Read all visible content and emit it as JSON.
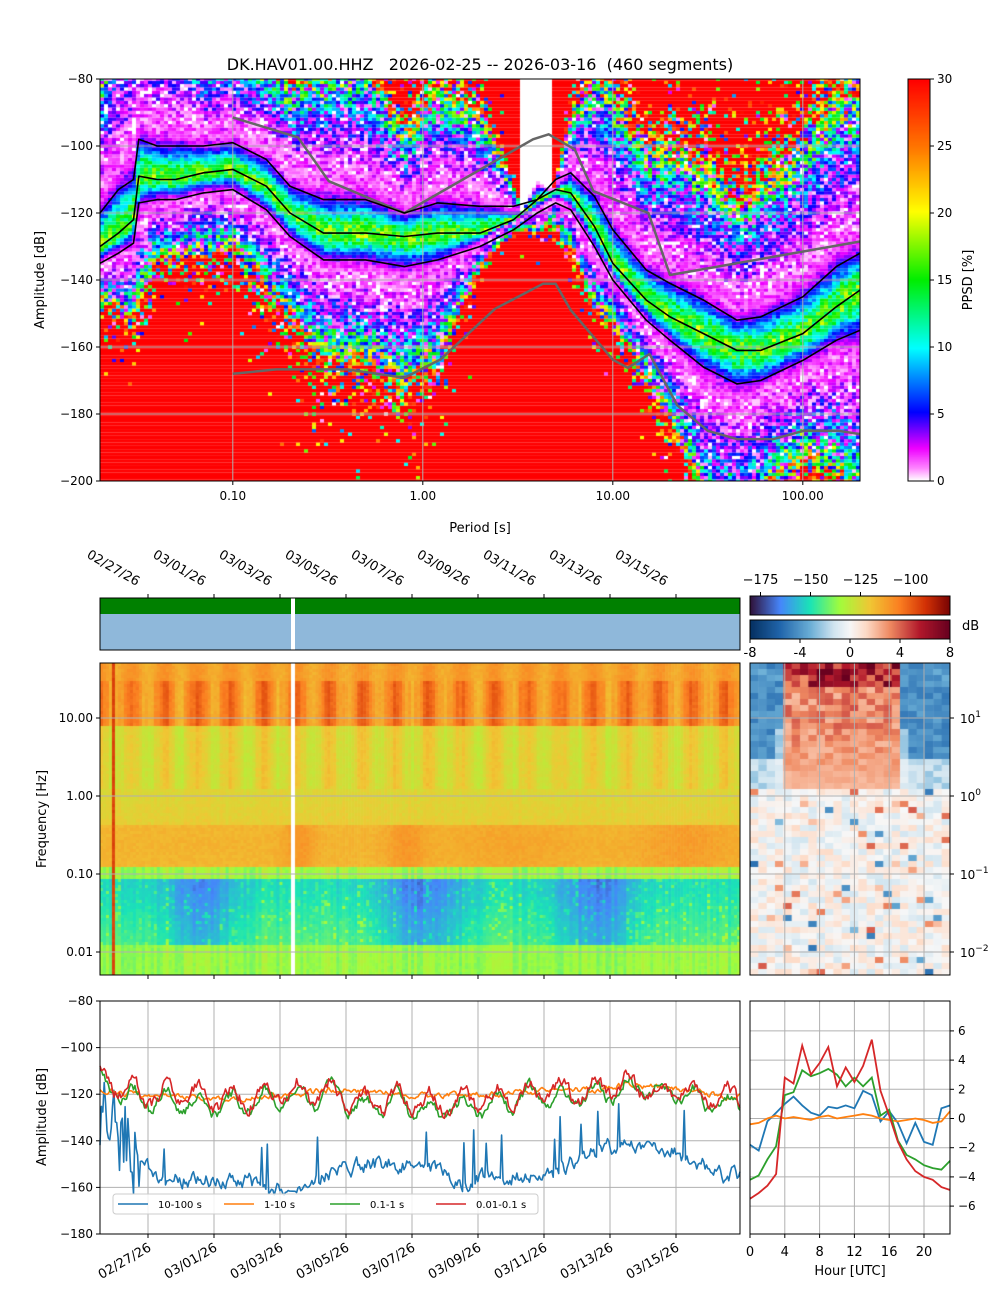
{
  "chart_data": [
    {
      "type": "heatmap",
      "name": "ppsd",
      "title": "DK.HAV01.00.HHZ   2026-02-25 -- 2026-03-16  (460 segments)",
      "xlabel": "Period [s]",
      "ylabel": "Amplitude [dB]",
      "xscale": "log",
      "xlim": [
        0.02,
        200
      ],
      "ylim": [
        -200,
        -80
      ],
      "xticks": [
        0.1,
        1,
        10,
        100
      ],
      "xtick_labels": [
        "0.10",
        "1.00",
        "10.00",
        "100.00"
      ],
      "yticks": [
        -80,
        -100,
        -120,
        -140,
        -160,
        -180,
        -200
      ],
      "grid": true,
      "colorbar": {
        "label": "PPSD [%]",
        "range": [
          0,
          30
        ],
        "ticks": [
          0,
          5,
          10,
          15,
          20,
          25,
          30
        ]
      },
      "percentiles": {
        "period": [
          0.02,
          0.025,
          0.03,
          0.032,
          0.04,
          0.05,
          0.07,
          0.1,
          0.15,
          0.2,
          0.3,
          0.5,
          0.8,
          1.2,
          2,
          3,
          4,
          5,
          6,
          8,
          10,
          15,
          20,
          30,
          45,
          60,
          100,
          150,
          200
        ],
        "upper": [
          -120,
          -113,
          -110,
          -98,
          -100,
          -100,
          -100,
          -99,
          -104,
          -112,
          -116,
          -116,
          -120,
          -117,
          -118,
          -118,
          -116,
          -110,
          -108,
          -115,
          -125,
          -137,
          -141,
          -146,
          -152,
          -151,
          -145,
          -136,
          -132
        ],
        "median": [
          -130,
          -126,
          -122,
          -109,
          -110,
          -110,
          -108,
          -107,
          -112,
          -120,
          -126,
          -126,
          -127,
          -126,
          -126,
          -122,
          -116,
          -113,
          -114,
          -124,
          -135,
          -146,
          -151,
          -156,
          -161,
          -161,
          -156,
          -148,
          -143
        ],
        "lower": [
          -135,
          -132,
          -129,
          -117,
          -116,
          -116,
          -114,
          -113,
          -119,
          -127,
          -134,
          -134,
          -136,
          -134,
          -130,
          -125,
          -120,
          -117,
          -119,
          -130,
          -140,
          -152,
          -158,
          -166,
          -171,
          -170,
          -164,
          -158,
          -155
        ]
      },
      "nhnm": [
        [
          0.1,
          -91.5
        ],
        [
          0.22,
          -97.4
        ],
        [
          0.32,
          -110.5
        ],
        [
          0.8,
          -120
        ],
        [
          3.8,
          -98
        ],
        [
          4.6,
          -96.5
        ],
        [
          6.3,
          -101
        ],
        [
          7.9,
          -113.5
        ],
        [
          15.4,
          -120
        ],
        [
          20,
          -138.5
        ],
        [
          200,
          -128.5
        ]
      ],
      "nlnm": [
        [
          0.1,
          -168
        ],
        [
          0.17,
          -166.7
        ],
        [
          0.4,
          -166.7
        ],
        [
          0.8,
          -169.2
        ],
        [
          1.24,
          -163.7
        ],
        [
          2.4,
          -148.6
        ],
        [
          4.3,
          -141.1
        ],
        [
          5,
          -141.1
        ],
        [
          6,
          -149
        ],
        [
          10,
          -163.8
        ],
        [
          12,
          -166.2
        ],
        [
          15.6,
          -162.1
        ],
        [
          21.9,
          -177.5
        ],
        [
          31.6,
          -185
        ],
        [
          45,
          -187.5
        ],
        [
          70,
          -187.5
        ],
        [
          101,
          -185
        ],
        [
          154,
          -185
        ],
        [
          200,
          -186
        ]
      ]
    },
    {
      "type": "heatmap",
      "name": "spectrogram",
      "ylabel": "Frequency [Hz]",
      "yscale": "log",
      "yticks": [
        "10.00",
        "1.00",
        "0.10",
        "0.01"
      ],
      "date_ticks": [
        "02/27/26",
        "03/01/26",
        "03/03/26",
        "03/05/26",
        "03/07/26",
        "03/09/26",
        "03/11/26",
        "03/13/26",
        "03/15/26"
      ],
      "colorbar": {
        "range": [
          -180,
          -80
        ],
        "ticks": [
          "−175",
          "−150",
          "−125",
          "−100"
        ]
      },
      "data_gap_date": "03/04/26"
    },
    {
      "type": "heatmap",
      "name": "diurnal-difference",
      "colorbar": {
        "label": "dB",
        "range": [
          -8,
          8
        ],
        "ticks": [
          "-8",
          "-4",
          "0",
          "4",
          "8"
        ]
      },
      "yticks": [
        "10",
        "0",
        "−1",
        "−2"
      ]
    },
    {
      "type": "line",
      "name": "band-amplitude-timeseries",
      "ylabel": "Amplitude [dB]",
      "ylim": [
        -180,
        -80
      ],
      "yticks": [
        "−80",
        "−100",
        "−120",
        "−140",
        "−160",
        "−180"
      ],
      "legend_position": "lower-left",
      "series": [
        {
          "name": "10-100 s",
          "color": "#1f77b4",
          "daily_mean": [
            -125,
            -148,
            -156,
            -158,
            -155,
            -160,
            -160,
            -155,
            -150,
            -150,
            -152,
            -158,
            -155,
            -156,
            -152,
            -145,
            -140,
            -143,
            -148,
            -155,
            -152,
            -150
          ]
        },
        {
          "name": "1-10 s",
          "color": "#ff7f0e",
          "daily_mean": [
            -118,
            -120,
            -120,
            -121,
            -122,
            -121,
            -120,
            -118,
            -119,
            -120,
            -121,
            -120,
            -120,
            -119,
            -118,
            -118,
            -116,
            -117,
            -119,
            -121,
            -119,
            -117
          ]
        },
        {
          "name": "0.1-1 s",
          "color": "#2ca02c",
          "daily_mean": [
            -115,
            -122,
            -123,
            -124,
            -124,
            -122,
            -122,
            -120,
            -126,
            -124,
            -127,
            -126,
            -124,
            -121,
            -122,
            -121,
            -117,
            -118,
            -121,
            -124,
            -120,
            -119
          ]
        },
        {
          "name": "0.01-0.1 s",
          "color": "#d62728",
          "daily_mean": [
            -112,
            -120,
            -120,
            -121,
            -122,
            -120,
            -119,
            -118,
            -124,
            -122,
            -124,
            -123,
            -122,
            -118,
            -120,
            -118,
            -116,
            -118,
            -119,
            -122,
            -118,
            -118
          ]
        }
      ]
    },
    {
      "type": "line",
      "name": "diurnal-band-profile",
      "xlabel": "Hour [UTC]",
      "xticks": [
        "0",
        "4",
        "8",
        "12",
        "16",
        "20"
      ],
      "yticks": [
        "6",
        "4",
        "2",
        "0",
        "−2",
        "−4",
        "−6"
      ],
      "x": [
        0,
        1,
        2,
        3,
        4,
        5,
        6,
        7,
        8,
        9,
        10,
        11,
        12,
        13,
        14,
        15,
        16,
        17,
        18,
        19,
        20,
        21,
        22,
        23
      ],
      "series": [
        {
          "name": "10-100 s",
          "color": "#1f77b4",
          "values": [
            -1.8,
            -2.2,
            -0.2,
            0.4,
            1.0,
            1.5,
            0.9,
            0.4,
            0.2,
            0.8,
            0.7,
            0.9,
            0.7,
            1.9,
            1.6,
            -0.2,
            0.5,
            -0.3,
            -1.7,
            -0.3,
            -1.6,
            -1.8,
            0.7,
            0.9
          ]
        },
        {
          "name": "1-10 s",
          "color": "#ff7f0e",
          "values": [
            -0.4,
            -0.3,
            0.0,
            0.2,
            0.0,
            0.1,
            0.0,
            -0.1,
            0.1,
            0.2,
            0.0,
            0.1,
            0.2,
            0.3,
            0.2,
            0.0,
            -0.1,
            -0.2,
            -0.1,
            0.0,
            -0.1,
            -0.3,
            -0.2,
            0.5
          ]
        },
        {
          "name": "0.1-1 s",
          "color": "#2ca02c",
          "values": [
            -4.2,
            -3.9,
            -2.8,
            -1.9,
            1.6,
            1.8,
            3.3,
            2.9,
            3.1,
            3.4,
            3.0,
            2.2,
            2.8,
            2.2,
            2.8,
            0.2,
            0.6,
            -1.5,
            -2.5,
            -2.8,
            -3.2,
            -3.4,
            -3.5,
            -2.9
          ]
        },
        {
          "name": "0.01-0.1 s",
          "color": "#d62728",
          "values": [
            -5.5,
            -5.1,
            -4.6,
            -3.8,
            2.8,
            2.4,
            5.0,
            3.0,
            3.8,
            4.9,
            2.2,
            3.5,
            2.5,
            3.6,
            5.4,
            1.9,
            0.2,
            -1.6,
            -2.8,
            -3.6,
            -4.0,
            -4.2,
            -4.7,
            -4.9
          ]
        }
      ]
    }
  ]
}
